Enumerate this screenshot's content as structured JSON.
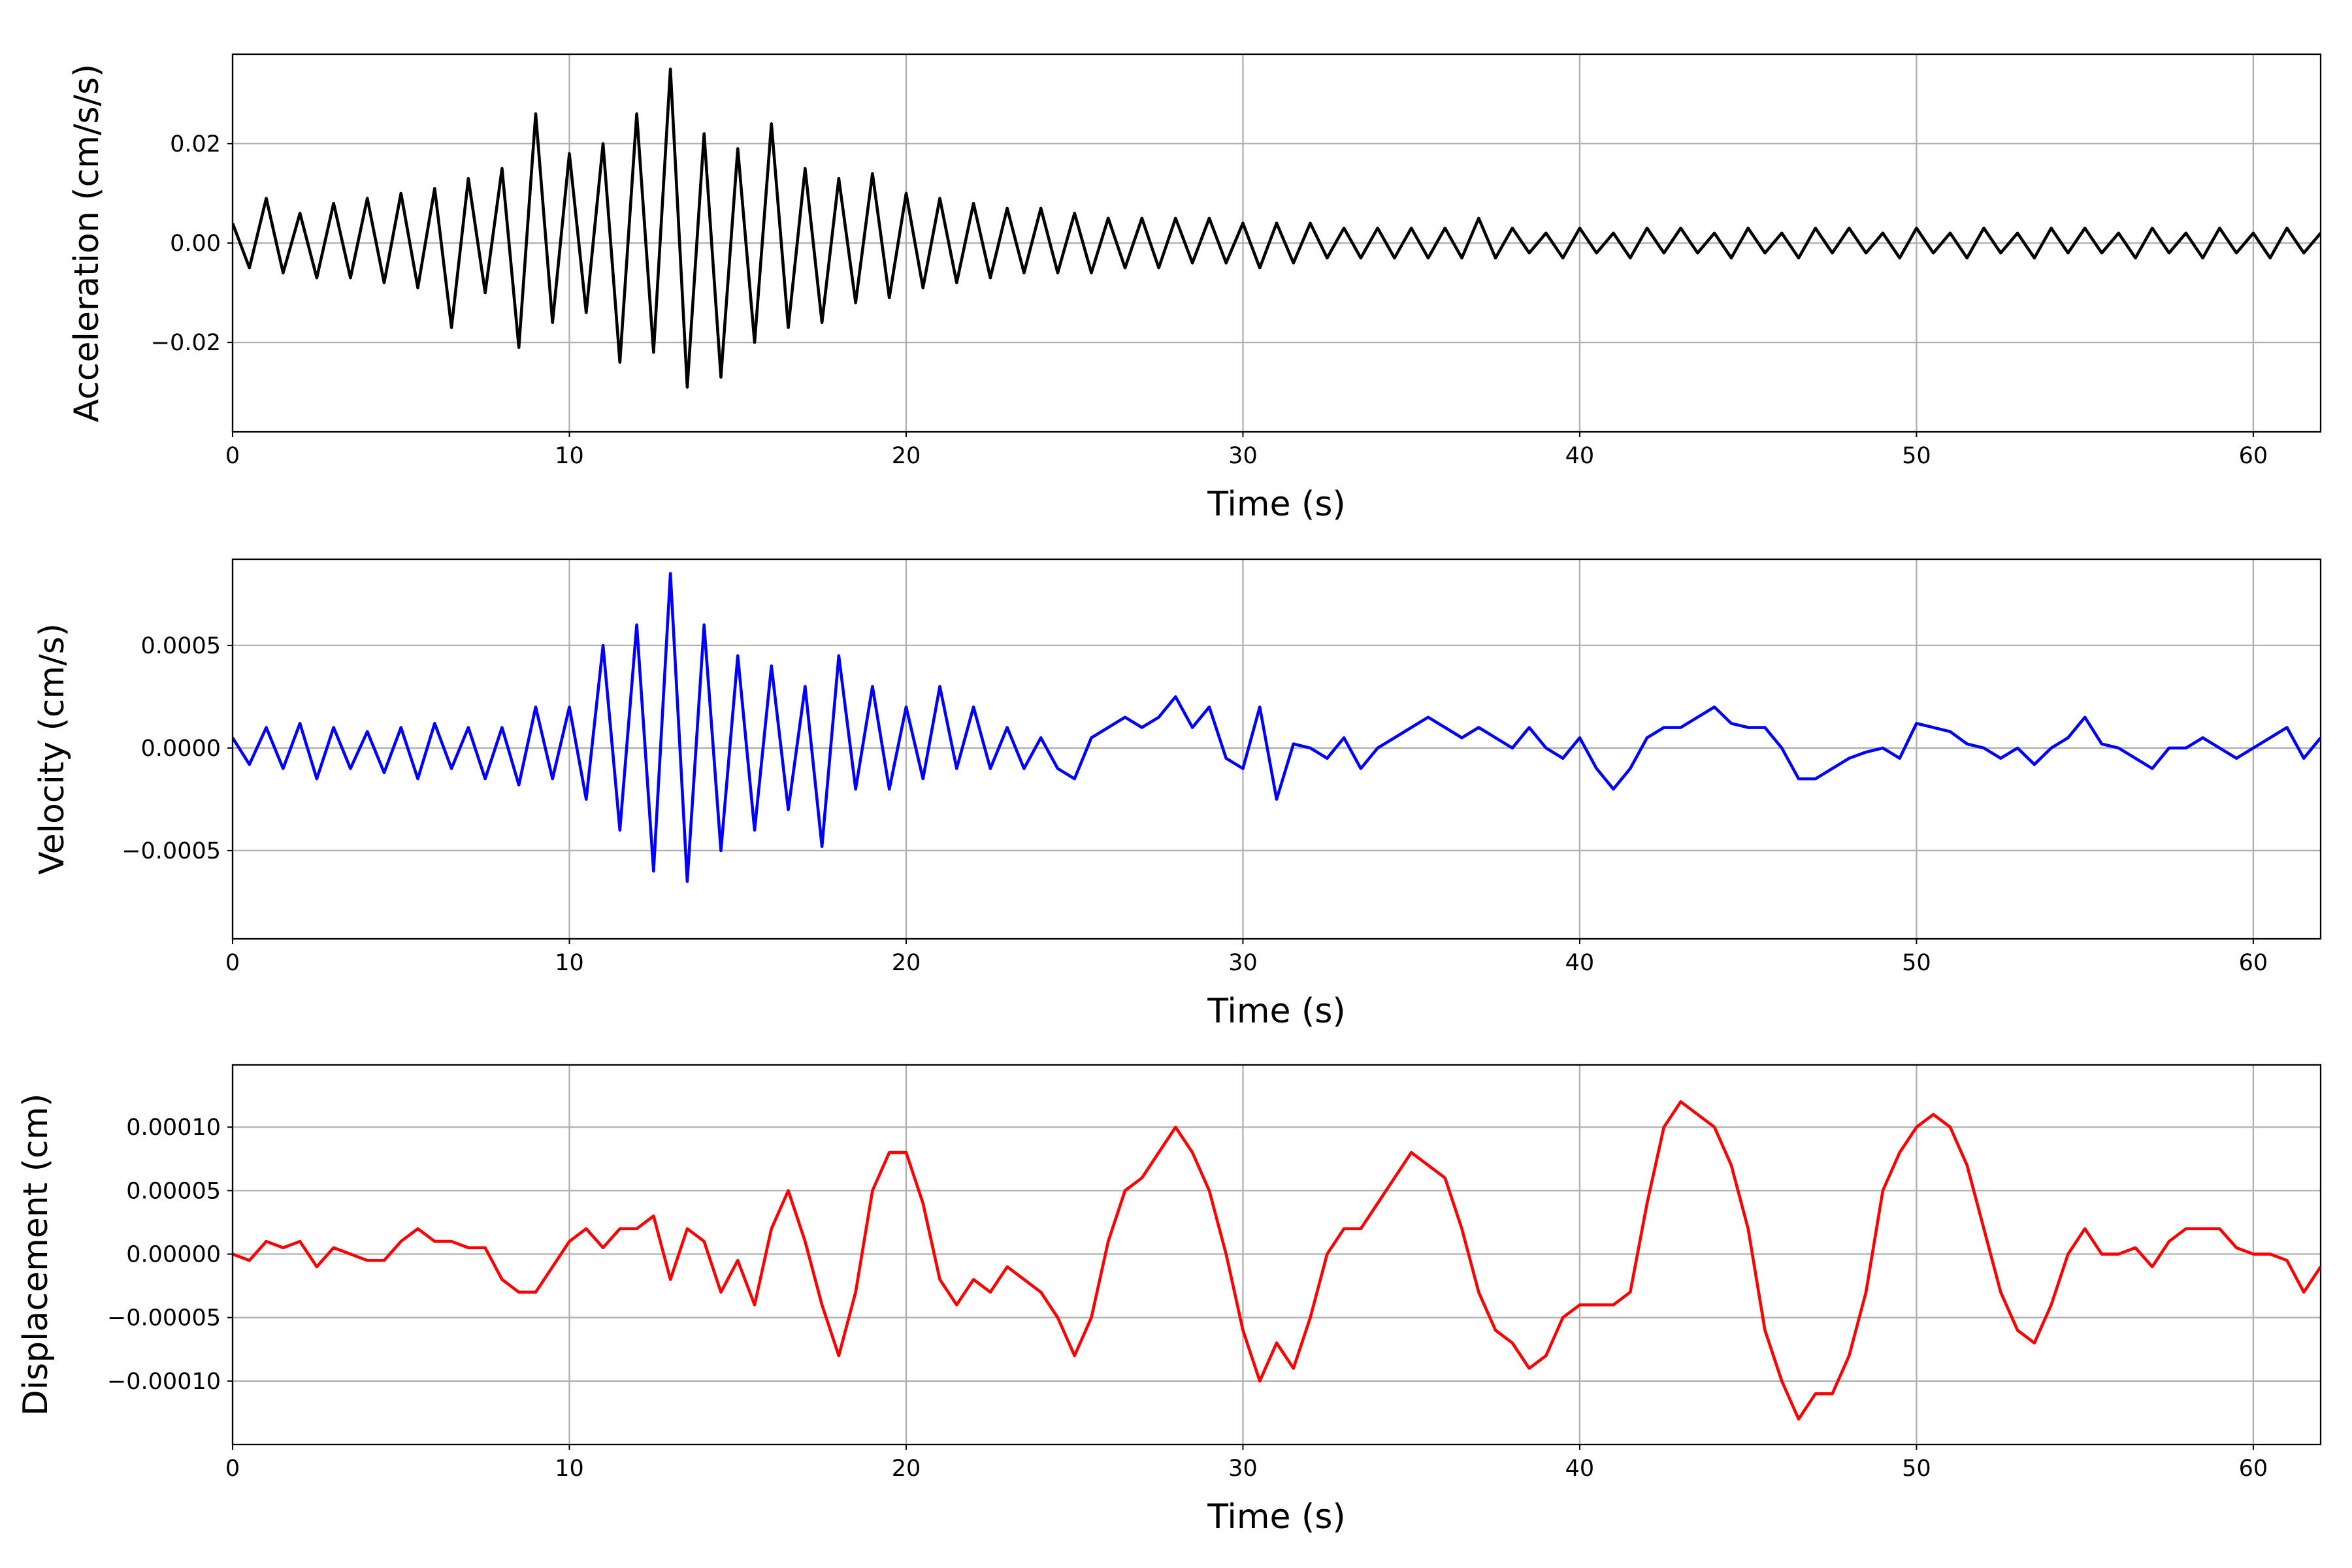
{
  "chart_data": [
    {
      "type": "line",
      "xlabel": "Time (s)",
      "ylabel": "Acceleration (cm/s/s)",
      "color": "#000000",
      "grid": true,
      "xlim": [
        0,
        62
      ],
      "xticks": [
        0,
        10,
        20,
        30,
        40,
        50,
        60
      ],
      "ylim": [
        -0.038,
        0.038
      ],
      "yticks": [
        {
          "value": -0.02,
          "label": "−0.02"
        },
        {
          "value": 0,
          "label": "0.00"
        },
        {
          "value": 0.02,
          "label": "0.02"
        }
      ],
      "x": [
        0,
        0.5,
        1,
        1.5,
        2,
        2.5,
        3,
        3.5,
        4,
        4.5,
        5,
        5.5,
        6,
        6.5,
        7,
        7.5,
        8,
        8.5,
        9,
        9.5,
        10,
        10.5,
        11,
        11.5,
        12,
        12.5,
        13,
        13.5,
        14,
        14.5,
        15,
        15.5,
        16,
        16.5,
        17,
        17.5,
        18,
        18.5,
        19,
        19.5,
        20,
        20.5,
        21,
        21.5,
        22,
        22.5,
        23,
        23.5,
        24,
        24.5,
        25,
        25.5,
        26,
        26.5,
        27,
        27.5,
        28,
        28.5,
        29,
        29.5,
        30,
        30.5,
        31,
        31.5,
        32,
        32.5,
        33,
        33.5,
        34,
        34.5,
        35,
        35.5,
        36,
        36.5,
        37,
        37.5,
        38,
        38.5,
        39,
        39.5,
        40,
        40.5,
        41,
        41.5,
        42,
        42.5,
        43,
        43.5,
        44,
        44.5,
        45,
        45.5,
        46,
        46.5,
        47,
        47.5,
        48,
        48.5,
        49,
        49.5,
        50,
        50.5,
        51,
        51.5,
        52,
        52.5,
        53,
        53.5,
        54,
        54.5,
        55,
        55.5,
        56,
        56.5,
        57,
        57.5,
        58,
        58.5,
        59,
        59.5,
        60,
        60.5,
        61,
        61.5,
        62
      ],
      "values": [
        0.004,
        -0.005,
        0.009,
        -0.006,
        0.006,
        -0.007,
        0.008,
        -0.007,
        0.009,
        -0.008,
        0.01,
        -0.009,
        0.011,
        -0.017,
        0.013,
        -0.01,
        0.015,
        -0.021,
        0.026,
        -0.016,
        0.018,
        -0.014,
        0.02,
        -0.024,
        0.026,
        -0.022,
        0.035,
        -0.029,
        0.022,
        -0.027,
        0.019,
        -0.02,
        0.024,
        -0.017,
        0.015,
        -0.016,
        0.013,
        -0.012,
        0.014,
        -0.011,
        0.01,
        -0.009,
        0.009,
        -0.008,
        0.008,
        -0.007,
        0.007,
        -0.006,
        0.007,
        -0.006,
        0.006,
        -0.006,
        0.005,
        -0.005,
        0.005,
        -0.005,
        0.005,
        -0.004,
        0.005,
        -0.004,
        0.004,
        -0.005,
        0.004,
        -0.004,
        0.004,
        -0.003,
        0.003,
        -0.003,
        0.003,
        -0.003,
        0.003,
        -0.003,
        0.003,
        -0.003,
        0.005,
        -0.003,
        0.003,
        -0.002,
        0.002,
        -0.003,
        0.003,
        -0.002,
        0.002,
        -0.003,
        0.003,
        -0.002,
        0.003,
        -0.002,
        0.002,
        -0.003,
        0.003,
        -0.002,
        0.002,
        -0.003,
        0.003,
        -0.002,
        0.003,
        -0.002,
        0.002,
        -0.003,
        0.003,
        -0.002,
        0.002,
        -0.003,
        0.003,
        -0.002,
        0.002,
        -0.003,
        0.003,
        -0.002,
        0.003,
        -0.002,
        0.002,
        -0.003,
        0.003,
        -0.002,
        0.002,
        -0.003,
        0.003,
        -0.002,
        0.002,
        -0.003,
        0.003,
        -0.002,
        0.002
      ]
    },
    {
      "type": "line",
      "xlabel": "Time (s)",
      "ylabel": "Velocity (cm/s)",
      "color": "#0000ff",
      "grid": true,
      "xlim": [
        0,
        62
      ],
      "xticks": [
        0,
        10,
        20,
        30,
        40,
        50,
        60
      ],
      "ylim": [
        -0.00093,
        0.00092
      ],
      "yticks": [
        {
          "value": -0.0005,
          "label": "−0.0005"
        },
        {
          "value": 0,
          "label": "0.0000"
        },
        {
          "value": 0.0005,
          "label": "0.0005"
        }
      ],
      "x": [
        0,
        0.5,
        1,
        1.5,
        2,
        2.5,
        3,
        3.5,
        4,
        4.5,
        5,
        5.5,
        6,
        6.5,
        7,
        7.5,
        8,
        8.5,
        9,
        9.5,
        10,
        10.5,
        11,
        11.5,
        12,
        12.5,
        13,
        13.5,
        14,
        14.5,
        15,
        15.5,
        16,
        16.5,
        17,
        17.5,
        18,
        18.5,
        19,
        19.5,
        20,
        20.5,
        21,
        21.5,
        22,
        22.5,
        23,
        23.5,
        24,
        24.5,
        25,
        25.5,
        26,
        26.5,
        27,
        27.5,
        28,
        28.5,
        29,
        29.5,
        30,
        30.5,
        31,
        31.5,
        32,
        32.5,
        33,
        33.5,
        34,
        34.5,
        35,
        35.5,
        36,
        36.5,
        37,
        37.5,
        38,
        38.5,
        39,
        39.5,
        40,
        40.5,
        41,
        41.5,
        42,
        42.5,
        43,
        43.5,
        44,
        44.5,
        45,
        45.5,
        46,
        46.5,
        47,
        47.5,
        48,
        48.5,
        49,
        49.5,
        50,
        50.5,
        51,
        51.5,
        52,
        52.5,
        53,
        53.5,
        54,
        54.5,
        55,
        55.5,
        56,
        56.5,
        57,
        57.5,
        58,
        58.5,
        59,
        59.5,
        60,
        60.5,
        61,
        61.5,
        62
      ],
      "values": [
        5e-05,
        -8e-05,
        0.0001,
        -0.0001,
        0.00012,
        -0.00015,
        0.0001,
        -0.0001,
        8e-05,
        -0.00012,
        0.0001,
        -0.00015,
        0.00012,
        -0.0001,
        0.0001,
        -0.00015,
        0.0001,
        -0.00018,
        0.0002,
        -0.00015,
        0.0002,
        -0.00025,
        0.0005,
        -0.0004,
        0.0006,
        -0.0006,
        0.00085,
        -0.00065,
        0.0006,
        -0.0005,
        0.00045,
        -0.0004,
        0.0004,
        -0.0003,
        0.0003,
        -0.00048,
        0.00045,
        -0.0002,
        0.0003,
        -0.0002,
        0.0002,
        -0.00015,
        0.0003,
        -0.0001,
        0.0002,
        -0.0001,
        0.0001,
        -0.0001,
        5e-05,
        -0.0001,
        -0.00015,
        5e-05,
        0.0001,
        0.00015,
        0.0001,
        0.00015,
        0.00025,
        0.0001,
        0.0002,
        -5e-05,
        -0.0001,
        0.0002,
        -0.00025,
        2e-05,
        0,
        -5e-05,
        5e-05,
        -0.0001,
        0,
        5e-05,
        0.0001,
        0.00015,
        0.0001,
        5e-05,
        0.0001,
        5e-05,
        0,
        0.0001,
        0,
        -5e-05,
        5e-05,
        -0.0001,
        -0.0002,
        -0.0001,
        5e-05,
        0.0001,
        0.0001,
        0.00015,
        0.0002,
        0.00012,
        0.0001,
        0.0001,
        0,
        -0.00015,
        -0.00015,
        -0.0001,
        -5e-05,
        -2e-05,
        0,
        -5e-05,
        0.00012,
        0.0001,
        8e-05,
        2e-05,
        0,
        -5e-05,
        0,
        -8e-05,
        0,
        5e-05,
        0.00015,
        2e-05,
        0,
        -5e-05,
        -0.0001,
        0,
        0,
        5e-05,
        0,
        -5e-05,
        0,
        5e-05,
        0.0001,
        -5e-05,
        5e-05
      ]
    },
    {
      "type": "line",
      "xlabel": "Time (s)",
      "ylabel": "Displacement (cm)",
      "color": "#ff0000",
      "grid": true,
      "xlim": [
        0,
        62
      ],
      "xticks": [
        0,
        10,
        20,
        30,
        40,
        50,
        60
      ],
      "ylim": [
        -0.00015,
        0.000149
      ],
      "yticks": [
        {
          "value": -0.0001,
          "label": "−0.00010"
        },
        {
          "value": -5e-05,
          "label": "−0.00005"
        },
        {
          "value": 0,
          "label": "0.00000"
        },
        {
          "value": 5e-05,
          "label": "0.00005"
        },
        {
          "value": 0.0001,
          "label": "0.00010"
        }
      ],
      "x": [
        0,
        0.5,
        1,
        1.5,
        2,
        2.5,
        3,
        3.5,
        4,
        4.5,
        5,
        5.5,
        6,
        6.5,
        7,
        7.5,
        8,
        8.5,
        9,
        9.5,
        10,
        10.5,
        11,
        11.5,
        12,
        12.5,
        13,
        13.5,
        14,
        14.5,
        15,
        15.5,
        16,
        16.5,
        17,
        17.5,
        18,
        18.5,
        19,
        19.5,
        20,
        20.5,
        21,
        21.5,
        22,
        22.5,
        23,
        23.5,
        24,
        24.5,
        25,
        25.5,
        26,
        26.5,
        27,
        27.5,
        28,
        28.5,
        29,
        29.5,
        30,
        30.5,
        31,
        31.5,
        32,
        32.5,
        33,
        33.5,
        34,
        34.5,
        35,
        35.5,
        36,
        36.5,
        37,
        37.5,
        38,
        38.5,
        39,
        39.5,
        40,
        40.5,
        41,
        41.5,
        42,
        42.5,
        43,
        43.5,
        44,
        44.5,
        45,
        45.5,
        46,
        46.5,
        47,
        47.5,
        48,
        48.5,
        49,
        49.5,
        50,
        50.5,
        51,
        51.5,
        52,
        52.5,
        53,
        53.5,
        54,
        54.5,
        55,
        55.5,
        56,
        56.5,
        57,
        57.5,
        58,
        58.5,
        59,
        59.5,
        60,
        60.5,
        61,
        61.5,
        62
      ],
      "values": [
        0,
        -5e-06,
        1e-05,
        5e-06,
        1e-05,
        -1e-05,
        5e-06,
        0,
        -5e-06,
        -5e-06,
        1e-05,
        2e-05,
        1e-05,
        1e-05,
        5e-06,
        5e-06,
        -2e-05,
        -3e-05,
        -3e-05,
        -1e-05,
        1e-05,
        2e-05,
        5e-06,
        2e-05,
        2e-05,
        3e-05,
        -2e-05,
        2e-05,
        1e-05,
        -3e-05,
        -5e-06,
        -4e-05,
        2e-05,
        5e-05,
        1e-05,
        -4e-05,
        -8e-05,
        -3e-05,
        5e-05,
        8e-05,
        8e-05,
        4e-05,
        -2e-05,
        -4e-05,
        -2e-05,
        -3e-05,
        -1e-05,
        -2e-05,
        -3e-05,
        -5e-05,
        -8e-05,
        -5e-05,
        1e-05,
        5e-05,
        6e-05,
        8e-05,
        0.0001,
        8e-05,
        5e-05,
        0,
        -6e-05,
        -0.0001,
        -7e-05,
        -9e-05,
        -5e-05,
        0,
        2e-05,
        2e-05,
        4e-05,
        6e-05,
        8e-05,
        7e-05,
        6e-05,
        2e-05,
        -3e-05,
        -6e-05,
        -7e-05,
        -9e-05,
        -8e-05,
        -5e-05,
        -4e-05,
        -4e-05,
        -4e-05,
        -3e-05,
        4e-05,
        0.0001,
        0.00012,
        0.00011,
        0.0001,
        7e-05,
        2e-05,
        -6e-05,
        -0.0001,
        -0.00013,
        -0.00011,
        -0.00011,
        -8e-05,
        -3e-05,
        5e-05,
        8e-05,
        0.0001,
        0.00011,
        0.0001,
        7e-05,
        2e-05,
        -3e-05,
        -6e-05,
        -7e-05,
        -4e-05,
        0,
        2e-05,
        0,
        0,
        5e-06,
        -1e-05,
        1e-05,
        2e-05,
        2e-05,
        2e-05,
        5e-06,
        0,
        0,
        -5e-06,
        -3e-05,
        -1e-05
      ]
    }
  ]
}
